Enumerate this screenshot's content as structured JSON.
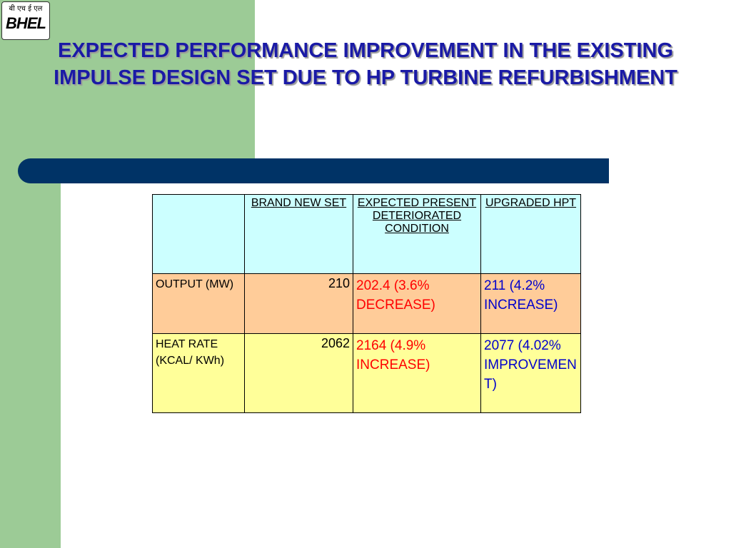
{
  "logo": {
    "hindi": "बी एच ई एल",
    "text": "BHEL"
  },
  "title": "EXPECTED PERFORMANCE IMPROVEMENT IN THE EXISTING IMPULSE DESIGN SET DUE TO HP TURBINE REFURBISHMENT",
  "table": {
    "header": [
      "BRAND NEW SET",
      "EXPECTED PRESENT DETERIORATED CONDITION",
      "UPGRADED HPT"
    ],
    "rows": [
      [
        "OUTPUT (MW)",
        210,
        "202.4 (3.6% DECREASE)",
        "211 (4.2% INCREASE)"
      ],
      [
        "HEAT RATE (KCAL/ KWh)",
        2062,
        "2164 (4.9% INCREASE)",
        "2077 (4.02% IMPROVEMENT)"
      ]
    ]
  }
}
